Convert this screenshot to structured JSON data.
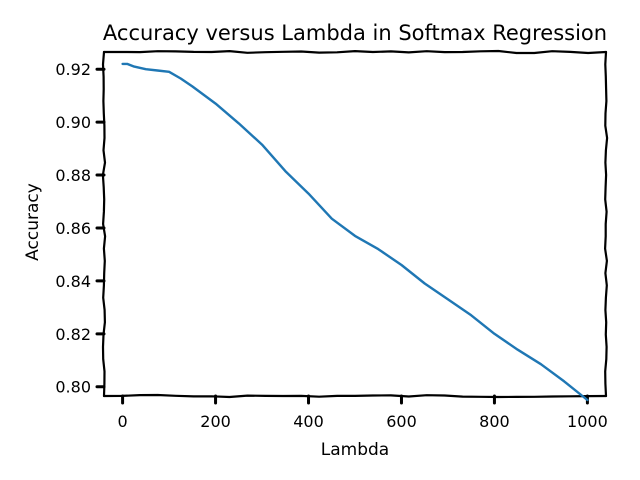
{
  "chart_data": {
    "type": "line",
    "title": "Accuracy versus Lambda in Softmax Regression",
    "xlabel": "Lambda",
    "ylabel": "Accuracy",
    "xlim": [
      -40,
      1040
    ],
    "ylim": [
      0.7965,
      0.9265
    ],
    "xticks": [
      0,
      200,
      400,
      600,
      800,
      1000
    ],
    "xtick_labels": [
      "0",
      "200",
      "400",
      "600",
      "800",
      "1000"
    ],
    "yticks": [
      0.8,
      0.82,
      0.84,
      0.86,
      0.88,
      0.9,
      0.92
    ],
    "ytick_labels": [
      "0.80",
      "0.82",
      "0.84",
      "0.86",
      "0.88",
      "0.90",
      "0.92"
    ],
    "grid": false,
    "series": [
      {
        "color": "#1f77b4",
        "x": [
          0,
          10,
          25,
          50,
          75,
          100,
          125,
          150,
          200,
          250,
          300,
          350,
          400,
          450,
          500,
          550,
          600,
          650,
          700,
          750,
          800,
          850,
          900,
          950,
          1000
        ],
        "y": [
          0.922,
          0.922,
          0.921,
          0.92,
          0.9195,
          0.919,
          0.9165,
          0.9135,
          0.907,
          0.8995,
          0.8915,
          0.8815,
          0.873,
          0.8635,
          0.857,
          0.852,
          0.846,
          0.839,
          0.833,
          0.827,
          0.82,
          0.814,
          0.8085,
          0.802,
          0.795
        ]
      }
    ]
  }
}
